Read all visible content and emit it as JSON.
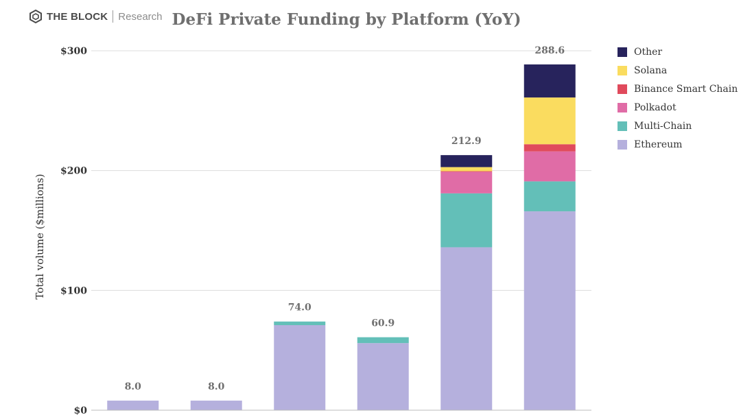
{
  "brand": {
    "name": "THE BLOCK",
    "sub": "Research"
  },
  "colors": {
    "Ethereum": "#b5b0dd",
    "Multi-Chain": "#63bfb8",
    "Polkadot": "#e06ca6",
    "Binance Smart Chain": "#e04a5c",
    "Solana": "#fadc5f",
    "Other": "#27235c"
  },
  "chart_data": {
    "type": "bar",
    "stacked": true,
    "title": "DeFi Private Funding by Platform (YoY)",
    "ylabel": "Total volume ($millions)",
    "xlabel": "",
    "ylim": [
      0,
      300
    ],
    "yticks": [
      "$0",
      "$100",
      "$200",
      "$300"
    ],
    "categories": [
      "",
      "",
      "",
      "",
      "",
      ""
    ],
    "totals": [
      "8.0",
      "8.0",
      "74.0",
      "60.9",
      "212.9",
      "288.6"
    ],
    "legend_position": "right",
    "series": [
      {
        "name": "Ethereum",
        "values": [
          8.0,
          8.0,
          71.0,
          56.0,
          136.0,
          166.0
        ]
      },
      {
        "name": "Multi-Chain",
        "values": [
          0,
          0,
          3.0,
          4.9,
          45.0,
          25.0
        ]
      },
      {
        "name": "Polkadot",
        "values": [
          0,
          0,
          0,
          0,
          18.0,
          25.0
        ]
      },
      {
        "name": "Binance Smart Chain",
        "values": [
          0,
          0,
          0,
          0,
          0.5,
          6.0
        ]
      },
      {
        "name": "Solana",
        "values": [
          0,
          0,
          0,
          0,
          3.4,
          39.0
        ]
      },
      {
        "name": "Other",
        "values": [
          0,
          0,
          0,
          0,
          10.0,
          27.6
        ]
      }
    ],
    "legend_order": [
      "Other",
      "Solana",
      "Binance Smart Chain",
      "Polkadot",
      "Multi-Chain",
      "Ethereum"
    ]
  }
}
